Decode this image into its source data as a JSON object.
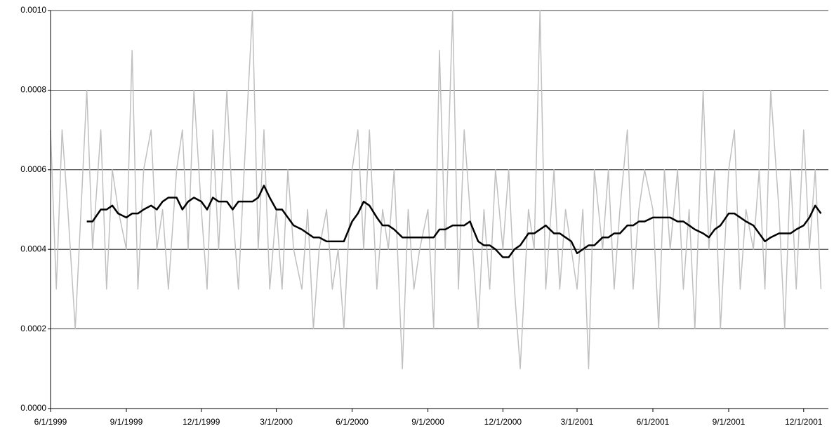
{
  "chart_data": {
    "type": "line",
    "x": [
      "6/1/1999",
      "6/8/1999",
      "6/15/1999",
      "6/22/1999",
      "7/1/1999",
      "7/8/1999",
      "7/15/1999",
      "7/22/1999",
      "8/1/1999",
      "8/8/1999",
      "8/15/1999",
      "8/22/1999",
      "9/1/1999",
      "9/8/1999",
      "9/15/1999",
      "9/22/1999",
      "10/1/1999",
      "10/8/1999",
      "10/15/1999",
      "10/22/1999",
      "11/1/1999",
      "11/8/1999",
      "11/15/1999",
      "11/22/1999",
      "12/1/1999",
      "12/8/1999",
      "12/15/1999",
      "12/22/1999",
      "1/1/2000",
      "1/8/2000",
      "1/15/2000",
      "1/22/2000",
      "2/1/2000",
      "2/8/2000",
      "2/15/2000",
      "2/22/2000",
      "3/1/2000",
      "3/8/2000",
      "3/15/2000",
      "3/22/2000",
      "4/1/2000",
      "4/8/2000",
      "4/15/2000",
      "4/22/2000",
      "5/1/2000",
      "5/8/2000",
      "5/15/2000",
      "5/22/2000",
      "6/1/2000",
      "6/8/2000",
      "6/15/2000",
      "6/22/2000",
      "7/1/2000",
      "7/8/2000",
      "7/15/2000",
      "7/22/2000",
      "8/1/2000",
      "8/8/2000",
      "8/15/2000",
      "8/22/2000",
      "9/1/2000",
      "9/8/2000",
      "9/15/2000",
      "9/22/2000",
      "10/1/2000",
      "10/8/2000",
      "10/15/2000",
      "10/22/2000",
      "11/1/2000",
      "11/8/2000",
      "11/15/2000",
      "11/22/2000",
      "12/1/2000",
      "12/8/2000",
      "12/15/2000",
      "12/22/2000",
      "1/1/2001",
      "1/8/2001",
      "1/15/2001",
      "1/22/2001",
      "2/1/2001",
      "2/8/2001",
      "2/15/2001",
      "2/22/2001",
      "3/1/2001",
      "3/8/2001",
      "3/15/2001",
      "3/22/2001",
      "4/1/2001",
      "4/8/2001",
      "4/15/2001",
      "4/22/2001",
      "5/1/2001",
      "5/8/2001",
      "5/15/2001",
      "5/22/2001",
      "6/1/2001",
      "6/8/2001",
      "6/15/2001",
      "6/22/2001",
      "7/1/2001",
      "7/8/2001",
      "7/15/2001",
      "7/22/2001",
      "8/1/2001",
      "8/8/2001",
      "8/15/2001",
      "8/22/2001",
      "9/1/2001",
      "9/8/2001",
      "9/15/2001",
      "9/22/2001",
      "10/1/2001",
      "10/8/2001",
      "10/15/2001",
      "10/22/2001",
      "11/1/2001",
      "11/8/2001",
      "11/15/2001",
      "11/22/2001",
      "12/1/2001",
      "12/8/2001",
      "12/15/2001",
      "12/22/2001"
    ],
    "series": [
      {
        "color": "#c0c0c0",
        "values": [
          0.0007,
          0.0003,
          0.0007,
          0.0005,
          0.0002,
          0.0005,
          0.0008,
          0.0004,
          0.0007,
          0.0003,
          0.0006,
          0.0005,
          0.0004,
          0.0009,
          0.0003,
          0.0006,
          0.0007,
          0.0004,
          0.0005,
          0.0003,
          0.0006,
          0.0007,
          0.0004,
          0.0008,
          0.0005,
          0.0003,
          0.0007,
          0.0004,
          0.0008,
          0.0005,
          0.0003,
          0.0006,
          0.001,
          0.0004,
          0.0007,
          0.0003,
          0.0005,
          0.0003,
          0.0006,
          0.0004,
          0.0003,
          0.0005,
          0.0002,
          0.0004,
          0.0005,
          0.0003,
          0.0004,
          0.0002,
          0.0006,
          0.0007,
          0.0004,
          0.0007,
          0.0003,
          0.0005,
          0.0004,
          0.0006,
          0.0001,
          0.0005,
          0.0003,
          0.0004,
          0.0005,
          0.0002,
          0.0009,
          0.0004,
          0.001,
          0.0003,
          0.0007,
          0.0005,
          0.0002,
          0.0005,
          0.0003,
          0.0006,
          0.0004,
          0.0006,
          0.0003,
          0.0001,
          0.0005,
          0.0004,
          0.001,
          0.0003,
          0.0006,
          0.0003,
          0.0005,
          0.0004,
          0.0003,
          0.0005,
          0.0001,
          0.0006,
          0.0004,
          0.0006,
          0.0003,
          0.0005,
          0.0007,
          0.0003,
          0.0005,
          0.0006,
          0.0005,
          0.0002,
          0.0006,
          0.0004,
          0.0006,
          0.0003,
          0.0005,
          0.0002,
          0.0008,
          0.0004,
          0.0006,
          0.0002,
          0.0006,
          0.0007,
          0.0003,
          0.0005,
          0.0004,
          0.0006,
          0.0003,
          0.0008,
          0.0005,
          0.0002,
          0.0006,
          0.0003,
          0.0007,
          0.0004,
          0.0006,
          0.0003
        ]
      },
      {
        "color": "#000000",
        "values": [
          null,
          null,
          null,
          null,
          null,
          null,
          0.00047,
          0.00047,
          0.0005,
          0.0005,
          0.00051,
          0.00049,
          0.00048,
          0.00049,
          0.00049,
          0.0005,
          0.00051,
          0.0005,
          0.00052,
          0.00053,
          0.00053,
          0.0005,
          0.00052,
          0.00053,
          0.00052,
          0.0005,
          0.00053,
          0.00052,
          0.00052,
          0.0005,
          0.00052,
          0.00052,
          0.00052,
          0.00053,
          0.00056,
          0.00053,
          0.0005,
          0.0005,
          0.00048,
          0.00046,
          0.00045,
          0.00044,
          0.00043,
          0.00043,
          0.00042,
          0.00042,
          0.00042,
          0.00042,
          0.00047,
          0.00049,
          0.00052,
          0.00051,
          0.00048,
          0.00046,
          0.00046,
          0.00045,
          0.00043,
          0.00043,
          0.00043,
          0.00043,
          0.00043,
          0.00043,
          0.00045,
          0.00045,
          0.00046,
          0.00046,
          0.00046,
          0.00047,
          0.00042,
          0.00041,
          0.00041,
          0.0004,
          0.00038,
          0.00038,
          0.0004,
          0.00041,
          0.00044,
          0.00044,
          0.00045,
          0.00046,
          0.00044,
          0.00044,
          0.00043,
          0.00042,
          0.00039,
          0.0004,
          0.00041,
          0.00041,
          0.00043,
          0.00043,
          0.00044,
          0.00044,
          0.00046,
          0.00046,
          0.00047,
          0.00047,
          0.00048,
          0.00048,
          0.00048,
          0.00048,
          0.00047,
          0.00047,
          0.00046,
          0.00045,
          0.00044,
          0.00043,
          0.00045,
          0.00046,
          0.00049,
          0.00049,
          0.00048,
          0.00047,
          0.00046,
          0.00044,
          0.00042,
          0.00043,
          0.00044,
          0.00044,
          0.00044,
          0.00045,
          0.00046,
          0.00048,
          0.00051,
          0.00049
        ]
      }
    ],
    "xlim": [
      "6/1/1999",
      "12/31/2001"
    ],
    "xticks": [
      "6/1/1999",
      "9/1/1999",
      "12/1/1999",
      "3/1/2000",
      "6/1/2000",
      "9/1/2000",
      "12/1/2000",
      "3/1/2001",
      "6/1/2001",
      "9/1/2001",
      "12/1/2001"
    ],
    "ylim": [
      0,
      0.001
    ],
    "yticks": [
      {
        "value": 0,
        "label": "0.0000"
      },
      {
        "value": 0.0002,
        "label": "0.0002"
      },
      {
        "value": 0.0004,
        "label": "0.0004"
      },
      {
        "value": 0.0006,
        "label": "0.0006"
      },
      {
        "value": 0.0008,
        "label": "0.0008"
      },
      {
        "value": 0.001,
        "label": "0.0010"
      }
    ],
    "grid": true
  }
}
